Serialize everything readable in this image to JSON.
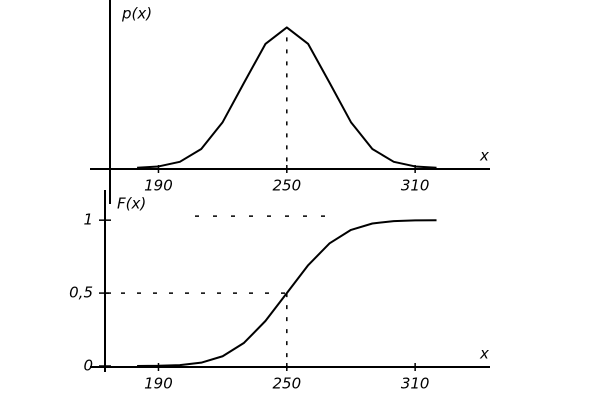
{
  "chart_data": [
    {
      "type": "line",
      "y_label": "p(x)",
      "x_label": "x",
      "x": [
        180,
        190,
        200,
        210,
        220,
        230,
        240,
        250,
        260,
        270,
        280,
        290,
        300,
        310,
        320
      ],
      "series": [
        {
          "color": "#000000",
          "values": [
            4e-05,
            0.00022,
            0.00088,
            0.0027,
            0.0065,
            0.0121,
            0.0176,
            0.01995,
            0.0176,
            0.0121,
            0.0065,
            0.0027,
            0.00088,
            0.00022,
            4e-05
          ]
        }
      ],
      "xlim": [
        165,
        345
      ],
      "ylim": [
        0,
        0.021
      ],
      "xticks": [
        190,
        250,
        310
      ],
      "yticks": []
    },
    {
      "type": "line",
      "y_label": "F(x)",
      "x_label": "x",
      "x": [
        180,
        190,
        200,
        210,
        220,
        230,
        240,
        250,
        260,
        270,
        280,
        290,
        300,
        310,
        320
      ],
      "series": [
        {
          "color": "#000000",
          "values": [
            0.0002,
            0.0013,
            0.0062,
            0.0228,
            0.0668,
            0.1587,
            0.3085,
            0.5,
            0.6915,
            0.8413,
            0.9332,
            0.9772,
            0.9938,
            0.9987,
            0.9998
          ]
        }
      ],
      "xlim": [
        165,
        345
      ],
      "ylim": [
        0,
        1.2
      ],
      "xticks": [
        190,
        250,
        310
      ],
      "yticks": [
        0,
        {
          "value": 0.5,
          "label": "0,5"
        },
        1
      ]
    }
  ]
}
